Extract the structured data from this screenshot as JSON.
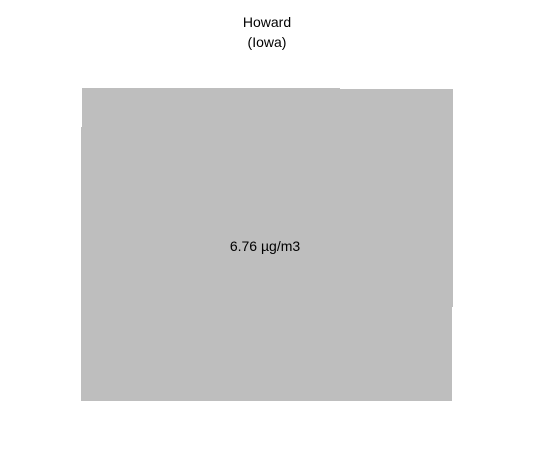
{
  "map": {
    "title": "Howard",
    "subtitle": "(Iowa)",
    "region_fill": "#bebebe",
    "value_label": "6.76 µg/m3"
  }
}
